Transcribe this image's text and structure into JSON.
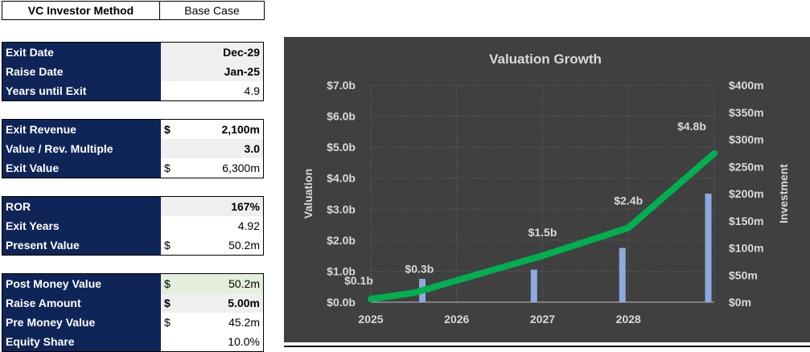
{
  "header": {
    "title": "VC Investor Method",
    "scenario": "Base Case"
  },
  "blocks": [
    {
      "rows": [
        {
          "label": "Exit Date",
          "currency": "",
          "value": "Dec-29",
          "style": "grey bold"
        },
        {
          "label": "Raise Date",
          "currency": "",
          "value": "Jan-25",
          "style": "grey bold"
        },
        {
          "label": "Years until Exit",
          "currency": "",
          "value": "4.9",
          "style": ""
        }
      ]
    },
    {
      "rows": [
        {
          "label": "Exit Revenue",
          "currency": "$",
          "value": "2,100m",
          "style": "bold"
        },
        {
          "label": "Value / Rev. Multiple",
          "currency": "",
          "value": "3.0",
          "style": "grey bold"
        },
        {
          "label": "Exit Value",
          "currency": "$",
          "value": "6,300m",
          "style": ""
        }
      ]
    },
    {
      "rows": [
        {
          "label": "ROR",
          "currency": "",
          "value": "167%",
          "style": "grey bold"
        },
        {
          "label": "Exit Years",
          "currency": "",
          "value": "4.92",
          "style": ""
        },
        {
          "label": "Present Value",
          "currency": "$",
          "value": "50.2m",
          "style": ""
        }
      ]
    },
    {
      "rows": [
        {
          "label": "Post Money Value",
          "currency": "$",
          "value": "50.2m",
          "style": "green"
        },
        {
          "label": "Raise Amount",
          "currency": "$",
          "value": "5.00m",
          "style": "grey bold"
        },
        {
          "label": "Pre Money Value",
          "currency": "$",
          "value": "45.2m",
          "style": ""
        },
        {
          "label": "Equity Share",
          "currency": "",
          "value": "10.0%",
          "style": ""
        }
      ]
    }
  ],
  "chart_data": {
    "type": "line+bar",
    "title": "Valuation Growth",
    "ylabel": "Valuation",
    "y2label": "Investment",
    "x_ticks": [
      "2025",
      "2026",
      "2027",
      "2028"
    ],
    "x_range": [
      2025,
      2029
    ],
    "ylim": [
      0,
      7
    ],
    "y_ticks": [
      "$0.0b",
      "$1.0b",
      "$2.0b",
      "$3.0b",
      "$4.0b",
      "$5.0b",
      "$6.0b",
      "$7.0b"
    ],
    "y2lim": [
      0,
      400
    ],
    "y2_ticks": [
      "$0m",
      "$50m",
      "$100m",
      "$150m",
      "$200m",
      "$250m",
      "$300m",
      "$350m",
      "$400m"
    ],
    "valuation_series": {
      "color": "#00b050",
      "points": [
        {
          "x": 2025.0,
          "y": 0.1,
          "label": "$0.1b"
        },
        {
          "x": 2025.5,
          "y": 0.3,
          "label": "$0.3b"
        },
        {
          "x": 2027.0,
          "y": 1.5,
          "label": "$1.5b"
        },
        {
          "x": 2028.0,
          "y": 2.4,
          "label": "$2.4b"
        },
        {
          "x": 2029.0,
          "y": 4.8,
          "label": "$4.8b"
        }
      ]
    },
    "investment_series": {
      "color": "#8ea9db",
      "points": [
        {
          "x": 2025.6,
          "y": 43
        },
        {
          "x": 2026.9,
          "y": 60
        },
        {
          "x": 2027.93,
          "y": 100
        },
        {
          "x": 2028.93,
          "y": 200
        }
      ]
    },
    "grid": true
  }
}
